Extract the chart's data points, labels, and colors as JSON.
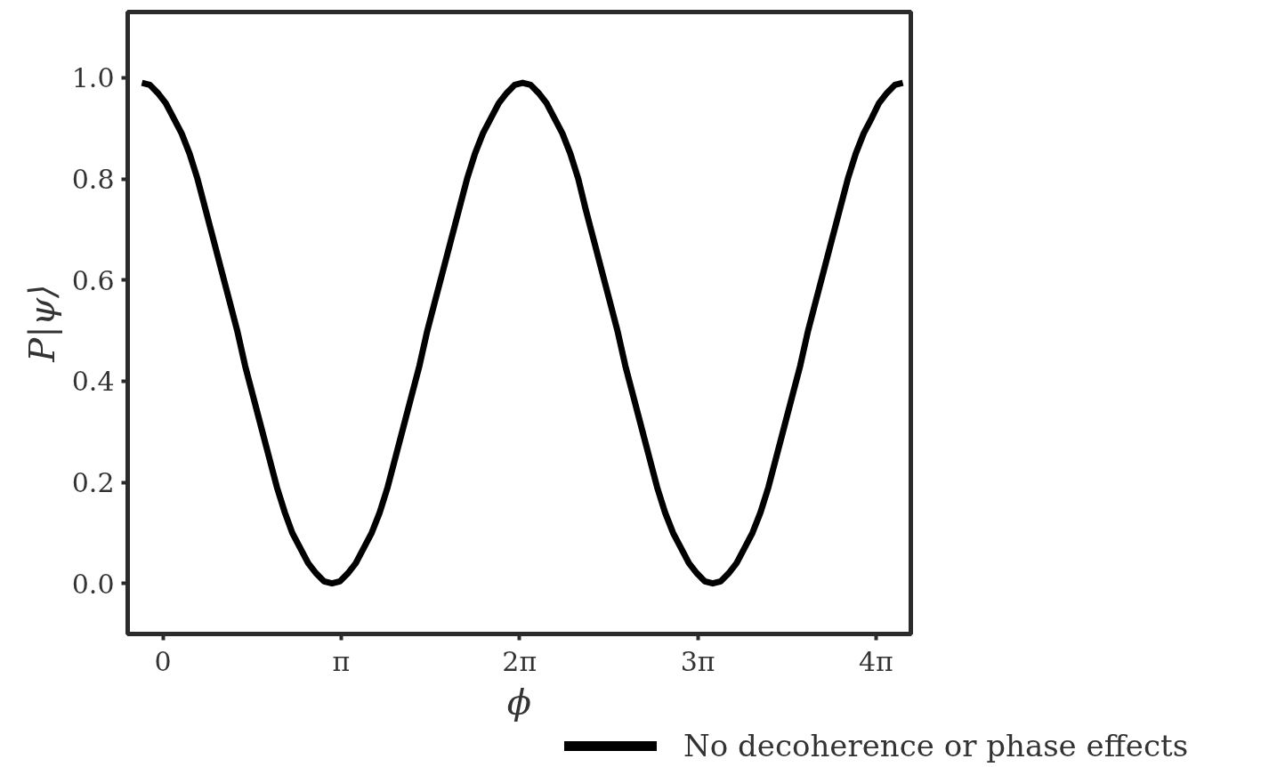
{
  "chart_data": {
    "type": "line",
    "xlabel": "ϕ",
    "ylabel": "P|ψ⟩",
    "x": [
      -0.37,
      -0.23,
      -0.09,
      0.05,
      0.19,
      0.33,
      0.47,
      0.61,
      0.75,
      0.89,
      1.03,
      1.17,
      1.31,
      1.45,
      1.59,
      1.73,
      1.87,
      2.01,
      2.15,
      2.28,
      2.42,
      2.56,
      2.7,
      2.84,
      2.98,
      3.12,
      3.26,
      3.4,
      3.54,
      3.68,
      3.82,
      3.96,
      4.1,
      4.24,
      4.38,
      4.52,
      4.66,
      4.8,
      4.94,
      5.08,
      5.22,
      5.36,
      5.5,
      5.64,
      5.78,
      5.92,
      6.06,
      6.2,
      6.34,
      6.48,
      6.62,
      6.76,
      6.9,
      7.04,
      7.18,
      7.32,
      7.45,
      7.59,
      7.73,
      7.87,
      8.01,
      8.15,
      8.29,
      8.43,
      8.57,
      8.71,
      8.85,
      8.99,
      9.13,
      9.27,
      9.41,
      9.55,
      9.69,
      9.83,
      9.97,
      10.11,
      10.25,
      10.39,
      10.53,
      10.67,
      10.81,
      10.95,
      11.09,
      11.23,
      11.37,
      11.51,
      11.65,
      11.79,
      11.93,
      12.07,
      12.21,
      12.35,
      12.49,
      12.62,
      12.76,
      12.9,
      13.04
    ],
    "series": [
      {
        "name": "No decoherence or phase effects",
        "color": "#000000",
        "values": [
          0.99,
          0.986,
          0.97,
          0.95,
          0.92,
          0.89,
          0.85,
          0.8,
          0.74,
          0.68,
          0.62,
          0.56,
          0.5,
          0.43,
          0.37,
          0.31,
          0.25,
          0.19,
          0.14,
          0.1,
          0.07,
          0.04,
          0.02,
          0.004,
          0.0,
          0.004,
          0.02,
          0.04,
          0.07,
          0.1,
          0.14,
          0.19,
          0.25,
          0.31,
          0.37,
          0.43,
          0.5,
          0.56,
          0.62,
          0.68,
          0.74,
          0.8,
          0.85,
          0.89,
          0.92,
          0.95,
          0.97,
          0.986,
          0.99,
          0.986,
          0.97,
          0.95,
          0.92,
          0.89,
          0.85,
          0.8,
          0.74,
          0.68,
          0.62,
          0.56,
          0.5,
          0.43,
          0.37,
          0.31,
          0.25,
          0.19,
          0.14,
          0.1,
          0.07,
          0.04,
          0.02,
          0.004,
          0.0,
          0.004,
          0.02,
          0.04,
          0.07,
          0.1,
          0.14,
          0.19,
          0.25,
          0.31,
          0.37,
          0.43,
          0.5,
          0.56,
          0.62,
          0.68,
          0.74,
          0.8,
          0.85,
          0.89,
          0.92,
          0.95,
          0.97,
          0.986,
          0.99
        ]
      }
    ],
    "xlim": [
      -0.62,
      13.18
    ],
    "ylim": [
      -0.1,
      1.13
    ],
    "xticks": [
      {
        "value": 0,
        "label": "0"
      },
      {
        "value": 3.14159,
        "label": "π"
      },
      {
        "value": 6.28319,
        "label": "2π"
      },
      {
        "value": 9.42478,
        "label": "3π"
      },
      {
        "value": 12.56637,
        "label": "4π"
      }
    ],
    "yticks": [
      {
        "value": 0,
        "label": "0.0"
      },
      {
        "value": 0.2,
        "label": "0.2"
      },
      {
        "value": 0.4,
        "label": "0.4"
      },
      {
        "value": 0.6,
        "label": "0.6"
      },
      {
        "value": 0.8,
        "label": "0.8"
      },
      {
        "value": 1,
        "label": "1.0"
      }
    ],
    "legend": "bottom right"
  }
}
